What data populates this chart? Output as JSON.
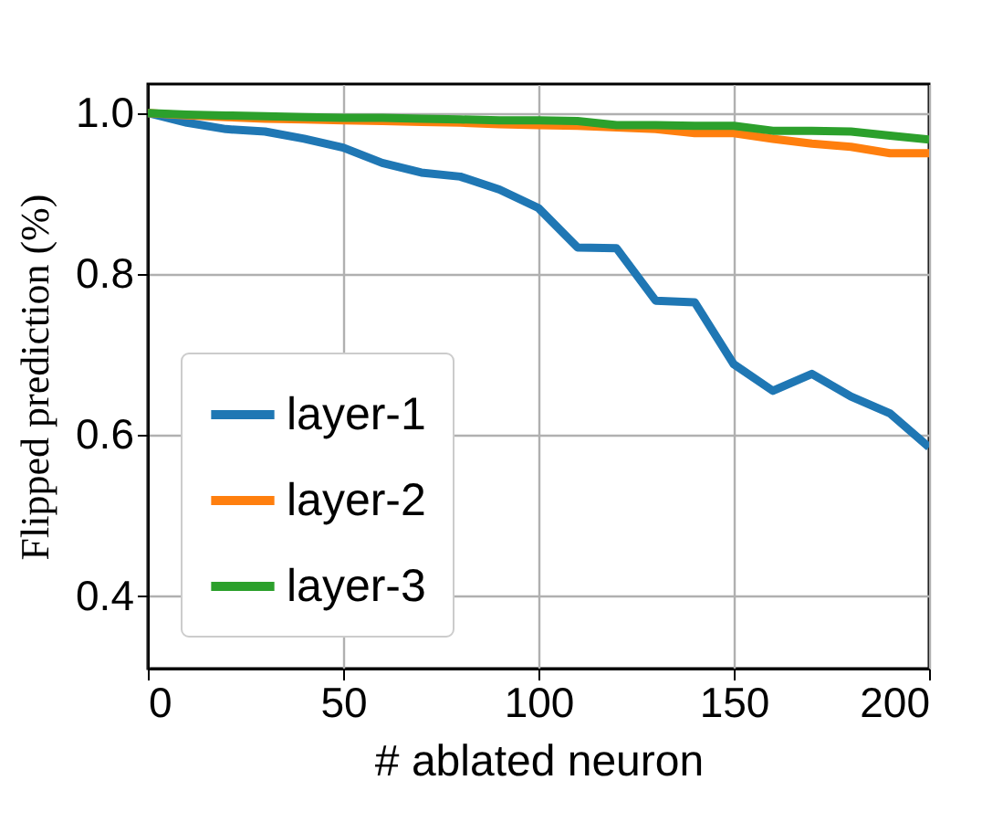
{
  "chart_data": {
    "type": "line",
    "xlabel": "# ablated neuron",
    "ylabel": "Flipped prediction (%)",
    "x": [
      0,
      10,
      20,
      30,
      40,
      50,
      60,
      70,
      80,
      90,
      100,
      110,
      120,
      130,
      140,
      150,
      160,
      170,
      180,
      190,
      200
    ],
    "series": [
      {
        "name": "layer-1",
        "color": "#1f77b4",
        "values": [
          1.0,
          0.988,
          0.98,
          0.977,
          0.968,
          0.957,
          0.938,
          0.926,
          0.921,
          0.905,
          0.882,
          0.833,
          0.832,
          0.767,
          0.765,
          0.688,
          0.655,
          0.676,
          0.648,
          0.627,
          0.585
        ]
      },
      {
        "name": "layer-2",
        "color": "#ff7f0e",
        "values": [
          1.0,
          0.997,
          0.995,
          0.993,
          0.992,
          0.991,
          0.99,
          0.989,
          0.988,
          0.986,
          0.985,
          0.984,
          0.982,
          0.98,
          0.975,
          0.975,
          0.968,
          0.962,
          0.958,
          0.95,
          0.95
        ]
      },
      {
        "name": "layer-3",
        "color": "#2ca02c",
        "values": [
          1.0,
          0.998,
          0.997,
          0.996,
          0.995,
          0.994,
          0.994,
          0.993,
          0.992,
          0.991,
          0.991,
          0.99,
          0.985,
          0.985,
          0.984,
          0.984,
          0.978,
          0.978,
          0.977,
          0.972,
          0.967
        ]
      }
    ],
    "xlim": [
      0,
      200
    ],
    "xticks": [
      0,
      50,
      100,
      150,
      200
    ],
    "ylim": [
      0.31,
      1.036
    ],
    "yticks": [
      {
        "value": 0.4,
        "label": "0.4"
      },
      {
        "value": 0.6,
        "label": "0.6"
      },
      {
        "value": 0.8,
        "label": "0.8"
      },
      {
        "value": 1.0,
        "label": "1.0"
      }
    ],
    "grid": true,
    "legend": "bottom left",
    "line_style": "solid",
    "marker": "none"
  }
}
